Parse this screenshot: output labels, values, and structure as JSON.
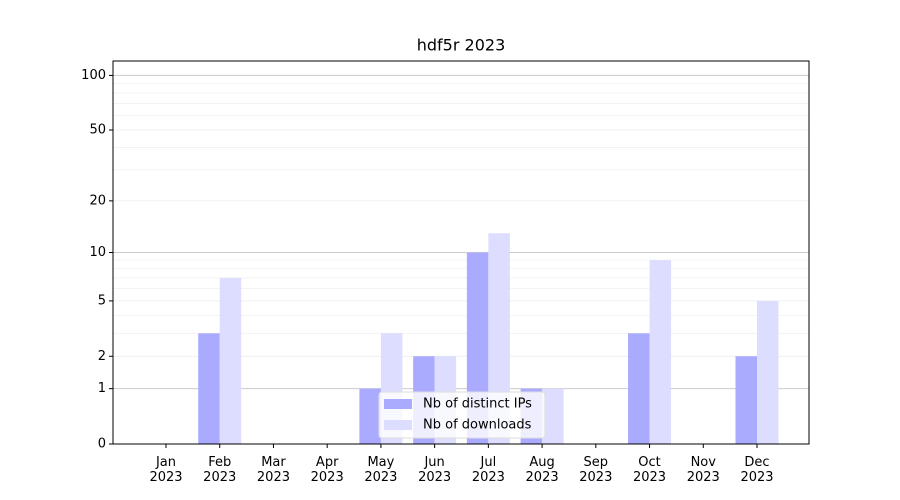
{
  "chart_data": {
    "type": "bar",
    "title": "hdf5r 2023",
    "categories": [
      "Jan\n2023",
      "Feb\n2023",
      "Mar\n2023",
      "Apr\n2023",
      "May\n2023",
      "Jun\n2023",
      "Jul\n2023",
      "Aug\n2023",
      "Sep\n2023",
      "Oct\n2023",
      "Nov\n2023",
      "Dec\n2023"
    ],
    "series": [
      {
        "name": "Nb of distinct IPs",
        "color": "#aaaaff",
        "values": [
          0,
          3,
          0,
          0,
          1,
          2,
          10,
          1,
          0,
          3,
          0,
          2
        ]
      },
      {
        "name": "Nb of downloads",
        "color": "#ddddff",
        "values": [
          0,
          7,
          0,
          0,
          3,
          2,
          13,
          1,
          0,
          9,
          0,
          5
        ]
      }
    ],
    "yscale": "log1p",
    "ylim": [
      0,
      120
    ],
    "yticks": [
      0,
      1,
      2,
      5,
      10,
      20,
      50,
      100
    ],
    "major_grid": [
      1,
      10,
      100
    ],
    "minor_grid": [
      3,
      4,
      6,
      7,
      8,
      9,
      30,
      40,
      60,
      70,
      80,
      90
    ],
    "legend": "lower center"
  }
}
